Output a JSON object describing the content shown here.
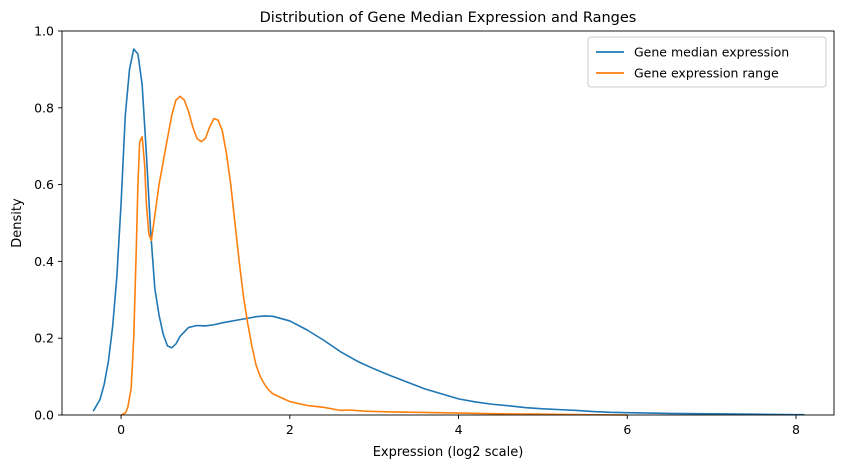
{
  "chart_data": {
    "type": "line",
    "title": "Distribution of Gene Median Expression and Ranges",
    "xlabel": "Expression (log2 scale)",
    "ylabel": "Density",
    "xlim": [
      -0.7,
      8.45
    ],
    "ylim": [
      0,
      1.0
    ],
    "xticks": [
      0,
      2,
      4,
      6,
      8
    ],
    "yticks": [
      0.0,
      0.2,
      0.4,
      0.6,
      0.8,
      1.0
    ],
    "grid": false,
    "legend_position": "top-right",
    "series": [
      {
        "name": "Gene median expression",
        "color": "#1f77b4",
        "x": [
          -0.33,
          -0.25,
          -0.2,
          -0.15,
          -0.1,
          -0.05,
          0.0,
          0.05,
          0.1,
          0.15,
          0.2,
          0.25,
          0.3,
          0.35,
          0.4,
          0.45,
          0.5,
          0.55,
          0.6,
          0.65,
          0.7,
          0.8,
          0.9,
          1.0,
          1.1,
          1.2,
          1.4,
          1.6,
          1.7,
          1.8,
          2.0,
          2.2,
          2.4,
          2.6,
          2.8,
          3.0,
          3.2,
          3.4,
          3.6,
          3.8,
          4.0,
          4.2,
          4.4,
          4.6,
          4.8,
          5.0,
          5.2,
          5.4,
          5.6,
          5.8,
          6.0,
          6.5,
          7.0,
          7.5,
          8.0,
          8.1
        ],
        "y": [
          0.01,
          0.04,
          0.08,
          0.14,
          0.23,
          0.36,
          0.55,
          0.78,
          0.9,
          0.953,
          0.94,
          0.86,
          0.68,
          0.48,
          0.33,
          0.26,
          0.21,
          0.18,
          0.175,
          0.185,
          0.205,
          0.228,
          0.233,
          0.232,
          0.235,
          0.24,
          0.248,
          0.256,
          0.258,
          0.257,
          0.245,
          0.222,
          0.195,
          0.165,
          0.14,
          0.12,
          0.102,
          0.085,
          0.068,
          0.055,
          0.042,
          0.034,
          0.028,
          0.024,
          0.019,
          0.016,
          0.014,
          0.012,
          0.009,
          0.007,
          0.006,
          0.004,
          0.003,
          0.002,
          0.001,
          0.001
        ]
      },
      {
        "name": "Gene expression range",
        "color": "#ff7f0e",
        "x": [
          0.0,
          0.05,
          0.08,
          0.12,
          0.15,
          0.18,
          0.2,
          0.22,
          0.25,
          0.28,
          0.3,
          0.33,
          0.36,
          0.4,
          0.45,
          0.5,
          0.55,
          0.6,
          0.65,
          0.7,
          0.75,
          0.8,
          0.85,
          0.9,
          0.95,
          1.0,
          1.05,
          1.1,
          1.15,
          1.2,
          1.25,
          1.3,
          1.35,
          1.4,
          1.45,
          1.5,
          1.55,
          1.6,
          1.65,
          1.7,
          1.75,
          1.8,
          1.9,
          2.0,
          2.2,
          2.4,
          2.6,
          2.7,
          2.9,
          3.2,
          3.5,
          4.0,
          4.5,
          5.0,
          5.5,
          6.0
        ],
        "y": [
          0.0,
          0.005,
          0.02,
          0.07,
          0.2,
          0.43,
          0.6,
          0.71,
          0.725,
          0.65,
          0.55,
          0.47,
          0.455,
          0.52,
          0.6,
          0.66,
          0.72,
          0.78,
          0.82,
          0.83,
          0.82,
          0.79,
          0.75,
          0.72,
          0.712,
          0.72,
          0.75,
          0.772,
          0.768,
          0.74,
          0.68,
          0.6,
          0.5,
          0.4,
          0.31,
          0.24,
          0.18,
          0.13,
          0.1,
          0.08,
          0.065,
          0.055,
          0.045,
          0.035,
          0.025,
          0.02,
          0.012,
          0.013,
          0.01,
          0.008,
          0.007,
          0.005,
          0.003,
          0.002,
          0.001,
          0.0
        ]
      }
    ]
  }
}
